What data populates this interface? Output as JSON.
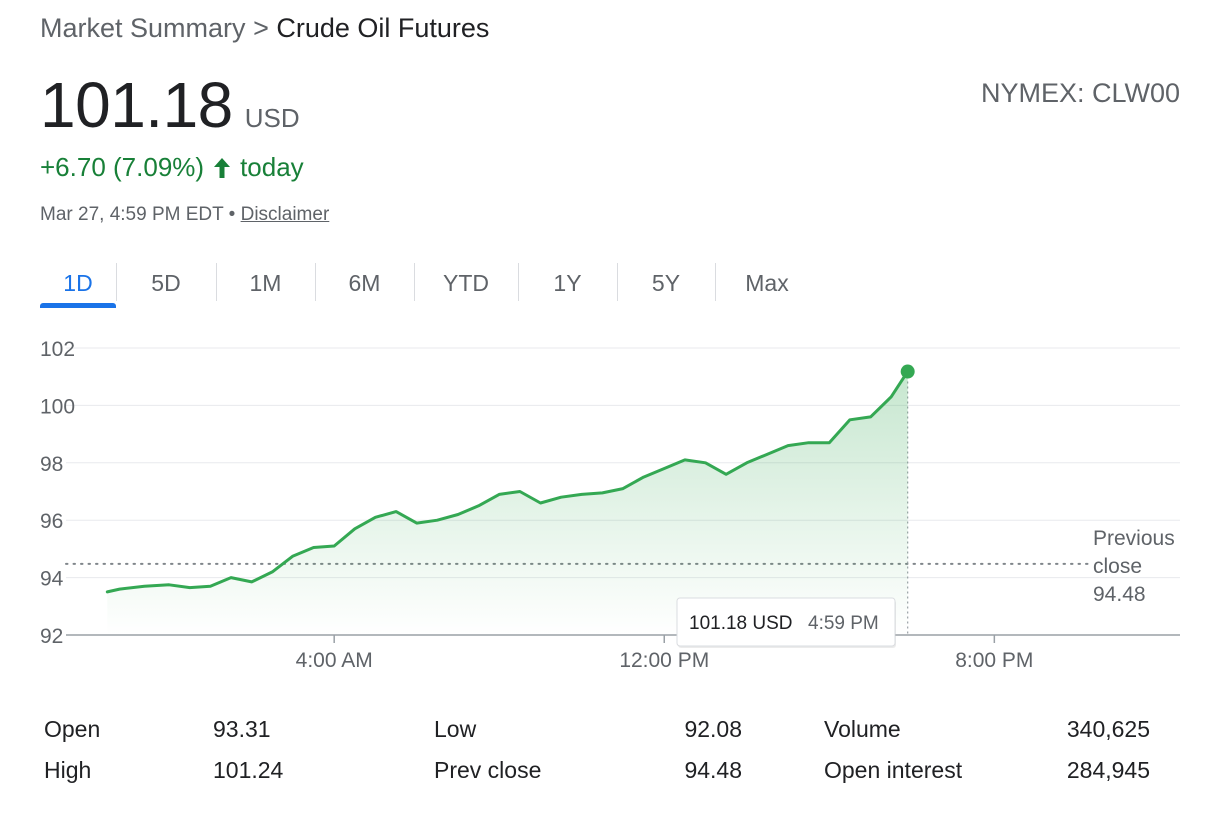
{
  "breadcrumb": {
    "parent": "Market Summary",
    "separator": ">",
    "current": "Crude Oil Futures"
  },
  "quote": {
    "price": "101.18",
    "currency": "USD",
    "exchange": "NYMEX: CLW00",
    "change": "+6.70 (7.09%)",
    "change_suffix": "today",
    "timestamp": "Mar 27, 4:59 PM EDT",
    "separator": "•",
    "disclaimer": "Disclaimer",
    "up_color": "#188038",
    "arrow_icon": "arrow-up-icon"
  },
  "tabs": [
    {
      "label": "1D",
      "active": true
    },
    {
      "label": "5D",
      "active": false
    },
    {
      "label": "1M",
      "active": false
    },
    {
      "label": "6M",
      "active": false
    },
    {
      "label": "YTD",
      "active": false
    },
    {
      "label": "1Y",
      "active": false
    },
    {
      "label": "5Y",
      "active": false
    },
    {
      "label": "Max",
      "active": false
    }
  ],
  "tooltip": {
    "value": "101.18 USD",
    "time": "4:59 PM"
  },
  "prev_close_label": [
    "Previous",
    "close",
    "94.48"
  ],
  "chart_data": {
    "type": "line",
    "ylim": [
      92,
      102
    ],
    "yticks": [
      92,
      94,
      96,
      98,
      100,
      102
    ],
    "xlim": [
      -2.5,
      24.5
    ],
    "xticks": [
      {
        "value": 4,
        "label": "4:00 AM"
      },
      {
        "value": 12,
        "label": "12:00 PM"
      },
      {
        "value": 20,
        "label": "8:00 PM"
      }
    ],
    "grid": true,
    "previous_close": 94.48,
    "line_color": "#34a853",
    "series": [
      {
        "x": [
          -1.5,
          -1.2,
          -0.6,
          0,
          0.5,
          1,
          1.5,
          2.0,
          2.5,
          3.0,
          3.5,
          4.0,
          4.5,
          5.0,
          5.5,
          6.0,
          6.5,
          7.0,
          7.5,
          8.0,
          8.5,
          9.0,
          9.5,
          10.0,
          10.5,
          11.0,
          11.5,
          12.0,
          12.5,
          13.0,
          13.5,
          14.0,
          14.5,
          15.0,
          15.5,
          16.0,
          16.5,
          17.0,
          17.5,
          17.9
        ],
        "y": [
          93.5,
          93.6,
          93.7,
          93.75,
          93.65,
          93.7,
          94.0,
          93.85,
          94.2,
          94.75,
          95.05,
          95.1,
          95.7,
          96.1,
          96.3,
          95.9,
          96.0,
          96.2,
          96.5,
          96.9,
          97.0,
          96.6,
          96.8,
          96.9,
          96.95,
          97.1,
          97.5,
          97.8,
          98.1,
          98.0,
          97.6,
          98.0,
          98.3,
          98.6,
          98.7,
          98.7,
          99.5,
          99.6,
          100.3,
          101.18
        ]
      }
    ]
  },
  "stats": [
    {
      "label": "Open",
      "value": "93.31"
    },
    {
      "label": "High",
      "value": "101.24"
    },
    {
      "label": "Low",
      "value": "92.08"
    },
    {
      "label": "Prev close",
      "value": "94.48"
    },
    {
      "label": "Volume",
      "value": "340,625"
    },
    {
      "label": "Open interest",
      "value": "284,945"
    }
  ]
}
